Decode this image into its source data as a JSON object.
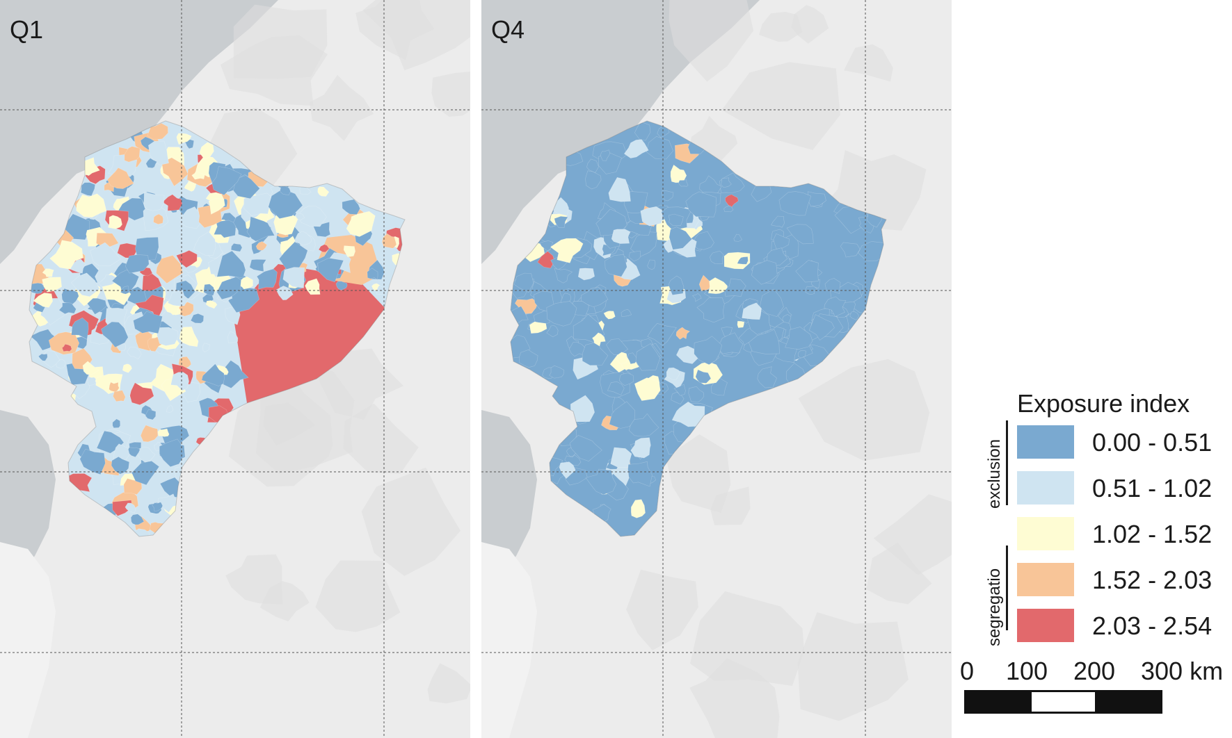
{
  "colors": {
    "sea": "#c9cdd0",
    "land": "#ececec",
    "relief": "#dedede",
    "grid": "#555555",
    "class_1": "#7aa9d0",
    "class_2": "#cfe4f1",
    "class_3": "#fefcd3",
    "class_4": "#f8c598",
    "class_5": "#e2696c"
  },
  "panels": [
    {
      "label": "Q1",
      "dominant_class": "mixed"
    },
    {
      "label": "Q4",
      "dominant_class": "class_1"
    }
  ],
  "legend": {
    "title": "Exposure index",
    "groups": [
      {
        "label": "exclusion",
        "classes": [
          0,
          1
        ]
      },
      {
        "label": "segregatio",
        "classes": [
          3,
          4
        ]
      }
    ],
    "classes": [
      {
        "label": "0.00 - 0.51",
        "color": "#7aa9d0"
      },
      {
        "label": "0.51 - 1.02",
        "color": "#cfe4f1"
      },
      {
        "label": "1.02 - 1.52",
        "color": "#fefcd3"
      },
      {
        "label": "1.52 - 2.03",
        "color": "#f8c598"
      },
      {
        "label": "2.03 - 2.54",
        "color": "#e2696c"
      }
    ]
  },
  "scale_bar": {
    "ticks": [
      "0",
      "100",
      "200",
      "300 km"
    ]
  }
}
